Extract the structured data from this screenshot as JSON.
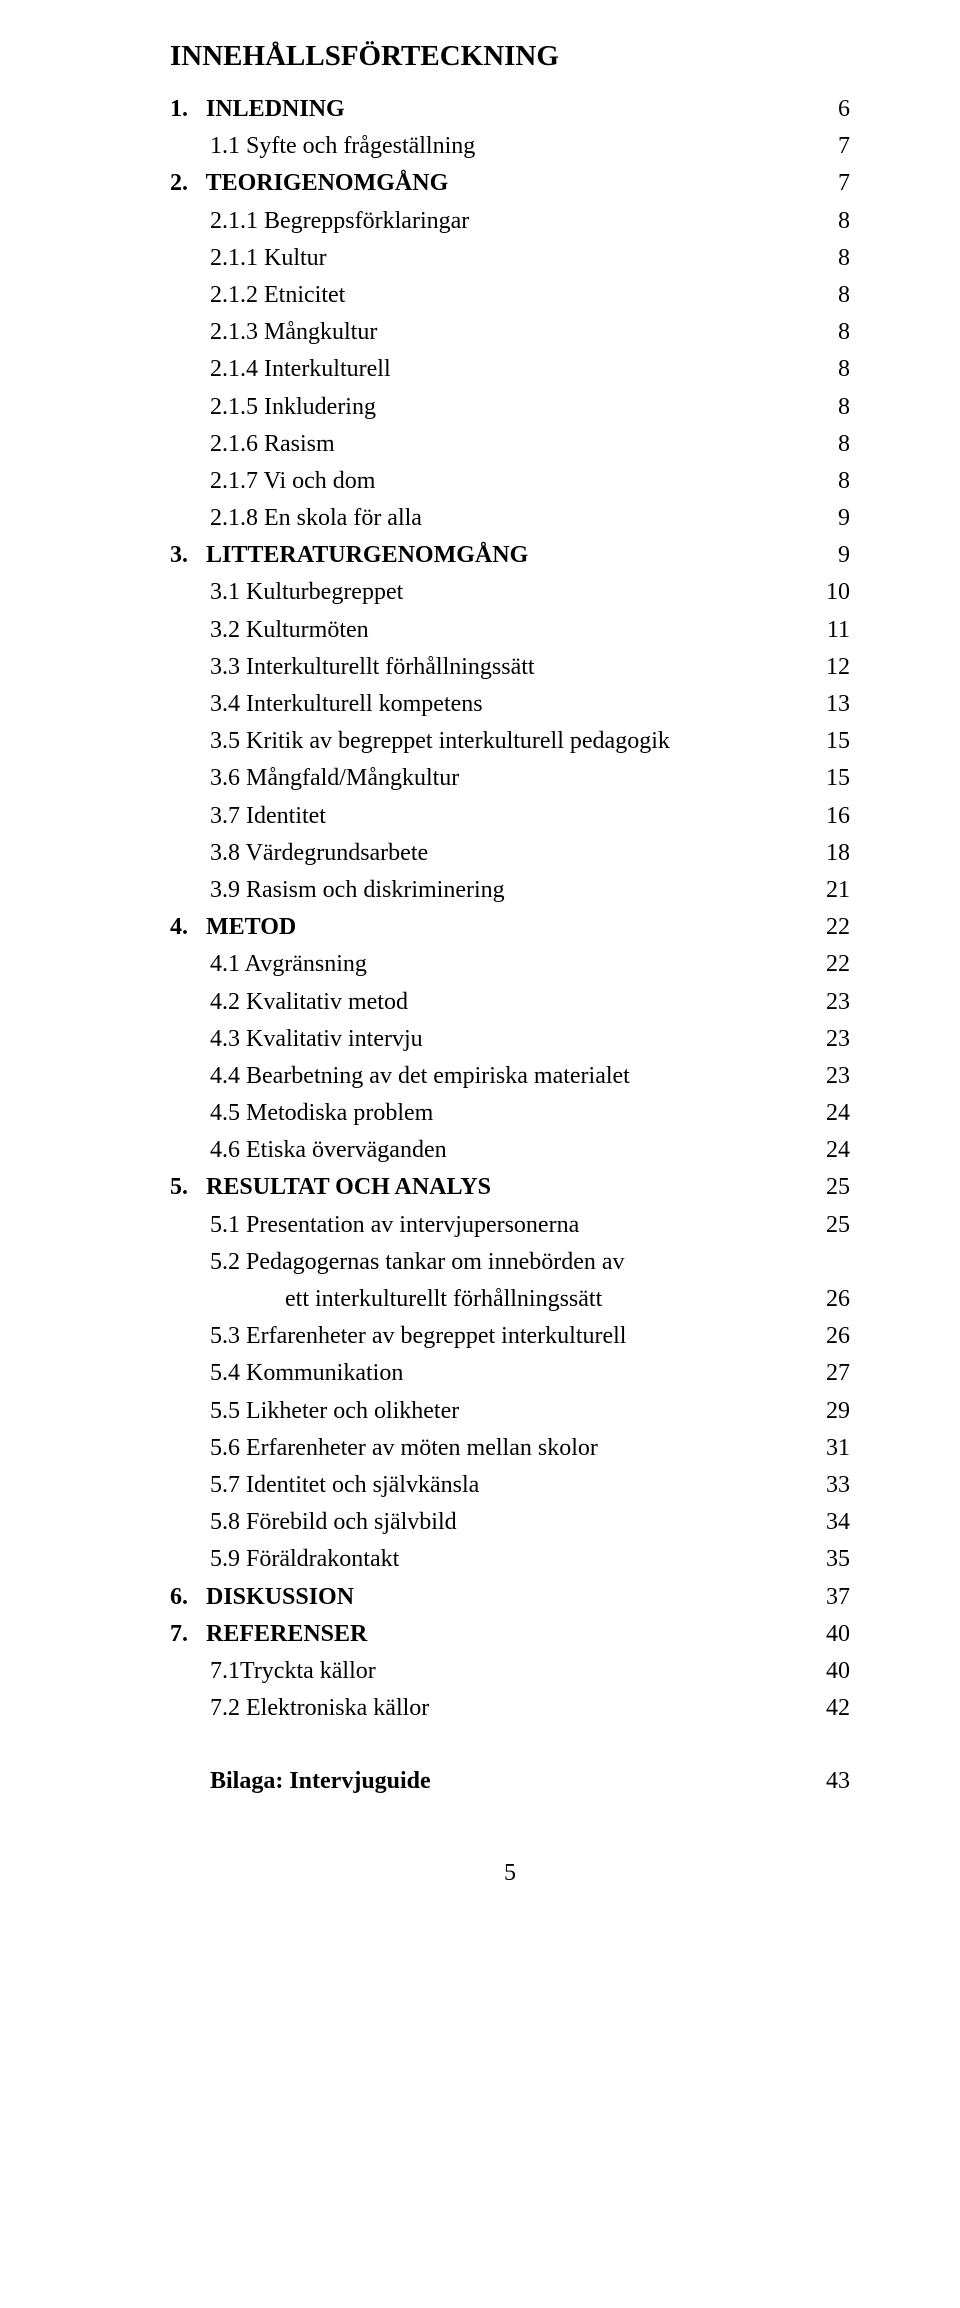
{
  "title": "INNEHÅLLSFÖRTECKNING",
  "entries": [
    {
      "label": "1.   INLEDNING",
      "page": "6",
      "section": true,
      "indent": 0
    },
    {
      "label": "1.1 Syfte och frågeställning",
      "page": "7",
      "section": false,
      "indent": 1
    },
    {
      "label": "2.   TEORIGENOMGÅNG",
      "page": "7",
      "section": true,
      "indent": 0
    },
    {
      "label": "2.1.1 Begreppsförklaringar",
      "page": "8",
      "section": false,
      "indent": 1
    },
    {
      "label": "2.1.1 Kultur",
      "page": "8",
      "section": false,
      "indent": 1
    },
    {
      "label": "2.1.2 Etnicitet",
      "page": "8",
      "section": false,
      "indent": 1
    },
    {
      "label": "2.1.3 Mångkultur",
      "page": "8",
      "section": false,
      "indent": 1
    },
    {
      "label": "2.1.4 Interkulturell",
      "page": "8",
      "section": false,
      "indent": 1
    },
    {
      "label": "2.1.5 Inkludering",
      "page": "8",
      "section": false,
      "indent": 1
    },
    {
      "label": "2.1.6 Rasism",
      "page": "8",
      "section": false,
      "indent": 1
    },
    {
      "label": "2.1.7 Vi och dom",
      "page": "8",
      "section": false,
      "indent": 1
    },
    {
      "label": "2.1.8 En skola för alla",
      "page": "9",
      "section": false,
      "indent": 1
    },
    {
      "label": "3.   LITTERATURGENOMGÅNG",
      "page": "9",
      "section": true,
      "indent": 0
    },
    {
      "label": "3.1 Kulturbegreppet",
      "page": "10",
      "section": false,
      "indent": 1
    },
    {
      "label": "3.2 Kulturmöten",
      "page": "11",
      "section": false,
      "indent": 1
    },
    {
      "label": "3.3 Interkulturellt förhållningssätt",
      "page": "12",
      "section": false,
      "indent": 1
    },
    {
      "label": "3.4 Interkulturell kompetens",
      "page": "13",
      "section": false,
      "indent": 1
    },
    {
      "label": "3.5 Kritik av begreppet interkulturell pedagogik",
      "page": "15",
      "section": false,
      "indent": 1
    },
    {
      "label": "3.6 Mångfald/Mångkultur",
      "page": "15",
      "section": false,
      "indent": 1
    },
    {
      "label": "3.7 Identitet",
      "page": "16",
      "section": false,
      "indent": 1
    },
    {
      "label": "3.8 Värdegrundsarbete",
      "page": "18",
      "section": false,
      "indent": 1
    },
    {
      "label": "3.9 Rasism och diskriminering",
      "page": "21",
      "section": false,
      "indent": 1
    },
    {
      "label": "4.   METOD",
      "page": "22",
      "section": true,
      "indent": 0
    },
    {
      "label": "4.1 Avgränsning",
      "page": "22",
      "section": false,
      "indent": 1
    },
    {
      "label": "4.2 Kvalitativ metod",
      "page": "23",
      "section": false,
      "indent": 1
    },
    {
      "label": "4.3 Kvalitativ intervju",
      "page": "23",
      "section": false,
      "indent": 1
    },
    {
      "label": "4.4 Bearbetning av det empiriska materialet",
      "page": "23",
      "section": false,
      "indent": 1
    },
    {
      "label": "4.5 Metodiska problem",
      "page": "24",
      "section": false,
      "indent": 1
    },
    {
      "label": "4.6 Etiska överväganden",
      "page": "24",
      "section": false,
      "indent": 1
    },
    {
      "label": "5.   RESULTAT OCH ANALYS",
      "page": "25",
      "section": true,
      "indent": 0
    },
    {
      "label": "5.1 Presentation av intervjupersonerna",
      "page": "25",
      "section": false,
      "indent": 1
    },
    {
      "label": "5.2 Pedagogernas tankar om innebörden av",
      "page": "",
      "section": false,
      "indent": 1
    },
    {
      "label": "ett interkulturellt förhållningssätt",
      "page": "26",
      "section": false,
      "indent": 2
    },
    {
      "label": "5.3 Erfarenheter av begreppet interkulturell",
      "page": "26",
      "section": false,
      "indent": 1
    },
    {
      "label": "5.4 Kommunikation",
      "page": "27",
      "section": false,
      "indent": 1
    },
    {
      "label": "5.5 Likheter och olikheter",
      "page": "29",
      "section": false,
      "indent": 1
    },
    {
      "label": "5.6 Erfarenheter av möten mellan skolor",
      "page": "31",
      "section": false,
      "indent": 1
    },
    {
      "label": "5.7 Identitet och självkänsla",
      "page": "33",
      "section": false,
      "indent": 1
    },
    {
      "label": "5.8 Förebild och självbild",
      "page": "34",
      "section": false,
      "indent": 1
    },
    {
      "label": "5.9 Föräldrakontakt",
      "page": "35",
      "section": false,
      "indent": 1
    },
    {
      "label": "6.   DISKUSSION",
      "page": "37",
      "section": true,
      "indent": 0
    },
    {
      "label": "7.   REFERENSER",
      "page": "40",
      "section": true,
      "indent": 0
    },
    {
      "label": "7.1Tryckta källor",
      "page": "40",
      "section": false,
      "indent": 1
    },
    {
      "label": "7.2 Elektroniska källor",
      "page": "42",
      "section": false,
      "indent": 1
    }
  ],
  "appendix": {
    "label": "Bilaga: Intervjuguide",
    "page": "43"
  },
  "footer_page": "5",
  "colors": {
    "text": "#000000",
    "background": "#ffffff"
  },
  "typography": {
    "title_fontsize": 29,
    "body_fontsize": 24,
    "font_family": "Times New Roman"
  }
}
